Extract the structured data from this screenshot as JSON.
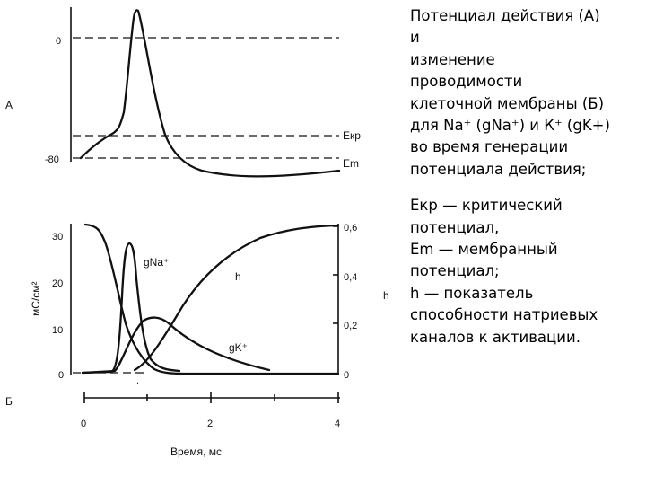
{
  "panel_a": {
    "label": "А",
    "y_ticks": [
      "0",
      "-80"
    ],
    "lines": {
      "threshold": "Екр",
      "rest": "Em"
    }
  },
  "panel_b": {
    "label": "Б",
    "left_axis_label": "мС/см²",
    "left_ticks": [
      "30",
      "20",
      "10",
      "0"
    ],
    "right_axis_label": "h",
    "right_ticks": [
      "0,6",
      "0,4",
      "0,2",
      "0"
    ],
    "curve_labels": {
      "gna": "gNa⁺",
      "gk": "gK⁺",
      "h": "h"
    },
    "x_ticks": [
      "0",
      "2",
      "4"
    ],
    "x_label": "Время, мс"
  },
  "caption": {
    "lines_1": [
      "Потенциал действия (А)",
      "и",
      "изменение",
      "проводимости",
      "клеточной мембраны (Б)",
      "для Na⁺ (gNa⁺) и К⁺ (gK+)",
      "во время генерации",
      "потенциала действия;"
    ],
    "lines_2": [
      "Екр — критический",
      "потенциал,",
      "Em — мембранный",
      "потенциал;",
      "h — показатель",
      "способности натриевых",
      "каналов к активации."
    ]
  }
}
